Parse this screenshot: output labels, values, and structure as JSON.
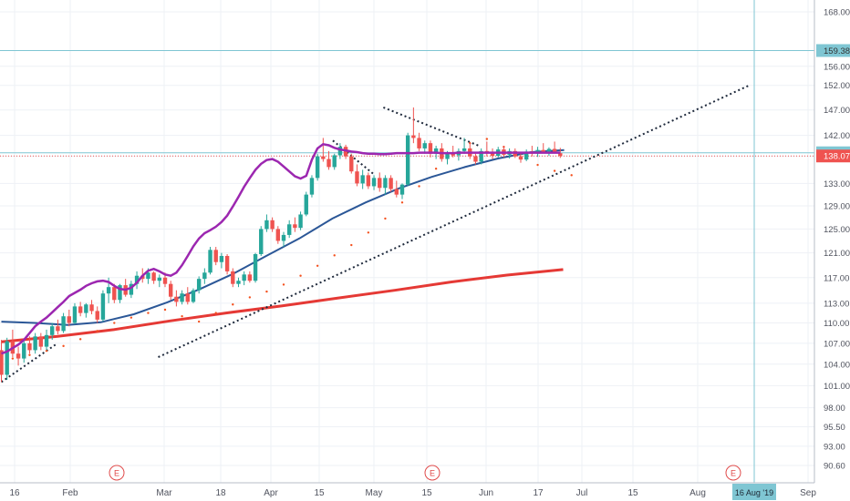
{
  "chart_data": {
    "type": "candlestick",
    "y_axis": {
      "range": [
        88.5,
        170.0
      ],
      "ticks": [
        "168.00",
        "156.00",
        "152.00",
        "147.00",
        "142.00",
        "138.00",
        "133.00",
        "129.00",
        "125.00",
        "121.00",
        "117.00",
        "113.00",
        "110.00",
        "107.00",
        "104.00",
        "101.00",
        "98.00",
        "95.50",
        "93.00",
        "90.60"
      ],
      "scale": "log",
      "grid": true
    },
    "x_axis": {
      "ticks": [
        "16",
        "Feb",
        "Mar",
        "18",
        "Apr",
        "15",
        "May",
        "15",
        "Jun",
        "17",
        "Jul",
        "15",
        "Aug",
        "Sep"
      ],
      "cursor_label": "16 Aug '19"
    },
    "price_labels": [
      {
        "value": "159.38",
        "color": "#7fc6d3",
        "text_color": "#333333",
        "kind": "horizontal-line"
      },
      {
        "value": "138.67",
        "color": "#7fc6d3",
        "text_color": "#333333",
        "kind": "horizontal-line"
      },
      {
        "value": "138.07",
        "color": "#ef5350",
        "text_color": "#ffffff",
        "kind": "last-price"
      }
    ],
    "earnings_markers": [
      "E",
      "E",
      "E"
    ],
    "colors": {
      "up": "#26a69a",
      "down": "#ef5350",
      "ma_fast": "#9c27b0",
      "ma_mid": "#2b5797",
      "ma_slow": "#e53935",
      "parabolic_sar": "#f4511e",
      "trendline": "#1f2a3c",
      "hline": "#7fc6d3"
    },
    "candles": [
      [
        106.0,
        107.5,
        101.5,
        102.5
      ],
      [
        102.5,
        107.8,
        101.8,
        107.3
      ],
      [
        107.3,
        109.0,
        105.0,
        105.5
      ],
      [
        105.5,
        106.5,
        103.8,
        104.8
      ],
      [
        104.8,
        107.5,
        104.2,
        107.0
      ],
      [
        107.0,
        108.0,
        105.5,
        106.0
      ],
      [
        106.0,
        108.5,
        105.5,
        108.0
      ],
      [
        108.0,
        108.5,
        106.0,
        106.5
      ],
      [
        106.5,
        109.0,
        106.0,
        108.2
      ],
      [
        108.2,
        110.0,
        107.5,
        109.5
      ],
      [
        109.5,
        110.5,
        108.3,
        108.8
      ],
      [
        108.8,
        111.5,
        108.5,
        111.0
      ],
      [
        111.0,
        112.0,
        109.5,
        110.0
      ],
      [
        110.0,
        113.0,
        109.8,
        112.5
      ],
      [
        112.5,
        113.2,
        111.0,
        111.5
      ],
      [
        111.5,
        113.0,
        110.8,
        112.8
      ],
      [
        112.8,
        113.5,
        111.3,
        111.8
      ],
      [
        111.8,
        112.5,
        110.0,
        110.5
      ],
      [
        110.5,
        115.0,
        110.2,
        114.5
      ],
      [
        114.5,
        117.0,
        113.0,
        115.5
      ],
      [
        115.5,
        116.0,
        113.0,
        113.5
      ],
      [
        113.5,
        116.0,
        113.0,
        115.8
      ],
      [
        115.8,
        116.8,
        114.0,
        114.3
      ],
      [
        114.3,
        116.5,
        113.8,
        116.0
      ],
      [
        116.0,
        118.0,
        115.2,
        117.3
      ],
      [
        117.3,
        118.5,
        116.2,
        116.8
      ],
      [
        116.8,
        118.5,
        116.0,
        117.8
      ],
      [
        117.8,
        118.0,
        116.0,
        116.5
      ],
      [
        116.5,
        117.5,
        115.5,
        117.0
      ],
      [
        117.0,
        117.8,
        115.5,
        116.0
      ],
      [
        116.0,
        116.5,
        113.5,
        114.0
      ],
      [
        114.0,
        115.0,
        112.5,
        113.2
      ],
      [
        113.2,
        115.0,
        112.8,
        114.5
      ],
      [
        114.5,
        115.5,
        112.8,
        113.2
      ],
      [
        113.2,
        115.3,
        113.0,
        115.0
      ],
      [
        115.0,
        117.2,
        114.5,
        116.8
      ],
      [
        116.8,
        118.5,
        116.0,
        117.8
      ],
      [
        117.8,
        122.0,
        117.5,
        121.5
      ],
      [
        121.5,
        122.0,
        119.0,
        119.5
      ],
      [
        119.5,
        121.0,
        118.5,
        120.5
      ],
      [
        120.5,
        120.8,
        117.5,
        118.0
      ],
      [
        118.0,
        118.5,
        115.5,
        116.0
      ],
      [
        116.0,
        117.0,
        115.5,
        116.5
      ],
      [
        116.5,
        118.0,
        115.8,
        117.5
      ],
      [
        117.5,
        118.0,
        116.2,
        116.5
      ],
      [
        116.5,
        121.0,
        116.2,
        120.8
      ],
      [
        120.8,
        125.5,
        120.5,
        125.0
      ],
      [
        125.0,
        127.5,
        124.5,
        126.5
      ],
      [
        126.5,
        127.0,
        124.5,
        125.0
      ],
      [
        125.0,
        125.5,
        122.5,
        123.0
      ],
      [
        123.0,
        124.5,
        122.0,
        124.0
      ],
      [
        124.0,
        126.5,
        123.5,
        125.8
      ],
      [
        125.8,
        127.0,
        124.5,
        125.2
      ],
      [
        125.2,
        128.0,
        124.8,
        127.5
      ],
      [
        127.5,
        131.5,
        127.2,
        131.0
      ],
      [
        131.0,
        134.5,
        130.5,
        134.0
      ],
      [
        134.0,
        138.5,
        133.5,
        138.0
      ],
      [
        138.0,
        141.5,
        137.0,
        137.5
      ],
      [
        137.5,
        139.0,
        135.5,
        136.0
      ],
      [
        136.0,
        138.5,
        135.5,
        138.2
      ],
      [
        138.2,
        140.5,
        137.5,
        139.8
      ],
      [
        139.8,
        140.2,
        137.5,
        138.0
      ],
      [
        138.0,
        138.5,
        134.8,
        135.2
      ],
      [
        135.2,
        136.5,
        132.5,
        133.0
      ],
      [
        133.0,
        135.5,
        132.0,
        134.5
      ],
      [
        134.5,
        135.0,
        132.0,
        132.5
      ],
      [
        132.5,
        134.5,
        131.8,
        134.0
      ],
      [
        134.0,
        135.0,
        131.5,
        132.2
      ],
      [
        132.2,
        134.5,
        131.0,
        134.0
      ],
      [
        134.0,
        134.5,
        131.5,
        132.0
      ],
      [
        132.0,
        133.5,
        130.5,
        131.0
      ],
      [
        131.0,
        133.0,
        130.2,
        132.8
      ],
      [
        132.8,
        142.5,
        132.5,
        142.0
      ],
      [
        142.0,
        147.5,
        140.5,
        141.5
      ],
      [
        141.5,
        142.5,
        139.0,
        139.5
      ],
      [
        139.5,
        141.0,
        138.5,
        140.5
      ],
      [
        140.5,
        141.0,
        137.8,
        138.5
      ],
      [
        138.5,
        140.0,
        137.5,
        139.5
      ],
      [
        139.5,
        140.5,
        137.0,
        137.5
      ],
      [
        137.5,
        139.0,
        136.5,
        138.8
      ],
      [
        138.8,
        140.0,
        137.8,
        138.2
      ],
      [
        138.2,
        139.5,
        137.2,
        139.0
      ],
      [
        139.0,
        141.5,
        138.5,
        139.5
      ],
      [
        139.5,
        140.5,
        137.5,
        138.0
      ],
      [
        138.0,
        138.5,
        136.5,
        137.0
      ],
      [
        137.0,
        139.5,
        136.5,
        139.0
      ],
      [
        139.0,
        140.8,
        138.0,
        138.6
      ],
      [
        138.6,
        139.5,
        137.5,
        138.1
      ],
      [
        138.1,
        139.8,
        137.8,
        139.3
      ],
      [
        139.3,
        140.0,
        137.8,
        138.3
      ],
      [
        138.3,
        139.5,
        137.6,
        139.0
      ],
      [
        139.0,
        139.5,
        137.7,
        138.0
      ],
      [
        138.0,
        138.8,
        136.8,
        137.4
      ],
      [
        137.4,
        139.3,
        137.1,
        138.9
      ],
      [
        138.9,
        140.0,
        138.0,
        138.5
      ],
      [
        138.5,
        139.8,
        137.9,
        139.2
      ],
      [
        139.2,
        140.5,
        138.6,
        138.8
      ],
      [
        138.8,
        139.7,
        138.1,
        139.4
      ],
      [
        139.4,
        140.8,
        138.6,
        138.6
      ],
      [
        138.6,
        139.6,
        137.7,
        138.07
      ]
    ],
    "ma_fast": [
      105.5,
      105.8,
      106.3,
      106.8,
      107.5,
      108.5,
      109.5,
      110.2,
      110.8,
      111.6,
      112.4,
      113.2,
      114.1,
      114.6,
      115.1,
      115.7,
      116.1,
      116.4,
      116.5,
      116.3,
      115.7,
      115.2,
      115.1,
      115.4,
      116.2,
      117.3,
      118.1,
      118.4,
      118.0,
      117.5,
      117.3,
      117.8,
      119.0,
      120.5,
      122.1,
      123.4,
      124.3,
      124.8,
      125.4,
      126.2,
      127.3,
      128.9,
      130.6,
      132.4,
      134.0,
      135.5,
      136.6,
      137.3,
      137.5,
      137.0,
      136.1,
      135.2,
      134.3,
      133.9,
      134.4,
      137.4,
      139.5,
      140.3,
      140.1,
      139.6,
      139.3,
      139.1,
      138.9,
      138.8,
      138.6,
      138.5,
      138.5,
      138.4,
      138.4,
      138.5,
      138.6,
      138.6,
      138.6,
      138.6,
      138.7,
      138.7,
      138.7,
      138.7,
      138.6,
      138.6,
      138.6,
      138.7,
      138.7,
      138.7,
      138.7,
      138.7,
      138.7,
      138.7,
      138.7,
      138.7,
      138.7,
      138.7,
      138.7,
      138.7,
      138.7,
      138.7,
      138.7,
      138.7,
      138.7,
      138.7
    ],
    "ma_mid": [
      [
        0,
        110.2
      ],
      [
        10,
        110.0
      ],
      [
        20,
        109.7
      ],
      [
        30,
        110.1
      ],
      [
        40,
        111.3
      ],
      [
        50,
        113.1
      ],
      [
        60,
        115.2
      ],
      [
        70,
        117.6
      ],
      [
        80,
        120.5
      ],
      [
        90,
        123.4
      ],
      [
        100,
        126.8
      ],
      [
        110,
        129.6
      ],
      [
        120,
        132.1
      ],
      [
        130,
        134.2
      ],
      [
        140,
        136.0
      ],
      [
        150,
        137.6
      ],
      [
        160,
        138.8
      ],
      [
        170,
        139.2
      ]
    ],
    "ma_slow": [
      [
        0,
        107.2
      ],
      [
        20,
        108.0
      ],
      [
        40,
        109.0
      ],
      [
        60,
        110.3
      ],
      [
        80,
        111.5
      ],
      [
        100,
        112.6
      ],
      [
        120,
        113.8
      ],
      [
        140,
        115.0
      ],
      [
        160,
        116.3
      ],
      [
        180,
        117.4
      ],
      [
        200,
        118.3
      ]
    ],
    "psar": [
      [
        2,
        104.8
      ],
      [
        5,
        105.3
      ],
      [
        8,
        105.9
      ],
      [
        11,
        106.6
      ],
      [
        14,
        107.6
      ],
      [
        17,
        108.8
      ],
      [
        20,
        110.0
      ],
      [
        23,
        110.8
      ],
      [
        26,
        111.5
      ],
      [
        29,
        112.0
      ],
      [
        32,
        111.0
      ],
      [
        35,
        110.2
      ],
      [
        38,
        111.5
      ],
      [
        41,
        112.8
      ],
      [
        44,
        113.9
      ],
      [
        47,
        114.8
      ],
      [
        50,
        115.9
      ],
      [
        53,
        117.3
      ],
      [
        56,
        118.9
      ],
      [
        59,
        120.6
      ],
      [
        62,
        122.3
      ],
      [
        65,
        124.4
      ],
      [
        68,
        126.8
      ],
      [
        71,
        129.6
      ],
      [
        74,
        132.5
      ],
      [
        77,
        135.7
      ],
      [
        80,
        138.3
      ],
      [
        83,
        140.5
      ],
      [
        86,
        141.3
      ],
      [
        89,
        139.8
      ],
      [
        92,
        137.8
      ],
      [
        95,
        136.4
      ],
      [
        98,
        135.3
      ],
      [
        101,
        134.5
      ]
    ],
    "trendlines": [
      {
        "style": "dotted",
        "from": [
          50,
          105.0
        ],
        "to": [
          250,
          152.0
        ]
      },
      {
        "style": "dotted",
        "from": [
          0,
          101.5
        ],
        "to": [
          20,
          107.0
        ]
      },
      {
        "style": "dotted",
        "from": [
          118,
          141.0
        ],
        "to": [
          133,
          134.5
        ]
      },
      {
        "style": "dotted",
        "from": [
          136,
          147.5
        ],
        "to": [
          170,
          140.0
        ]
      }
    ]
  }
}
